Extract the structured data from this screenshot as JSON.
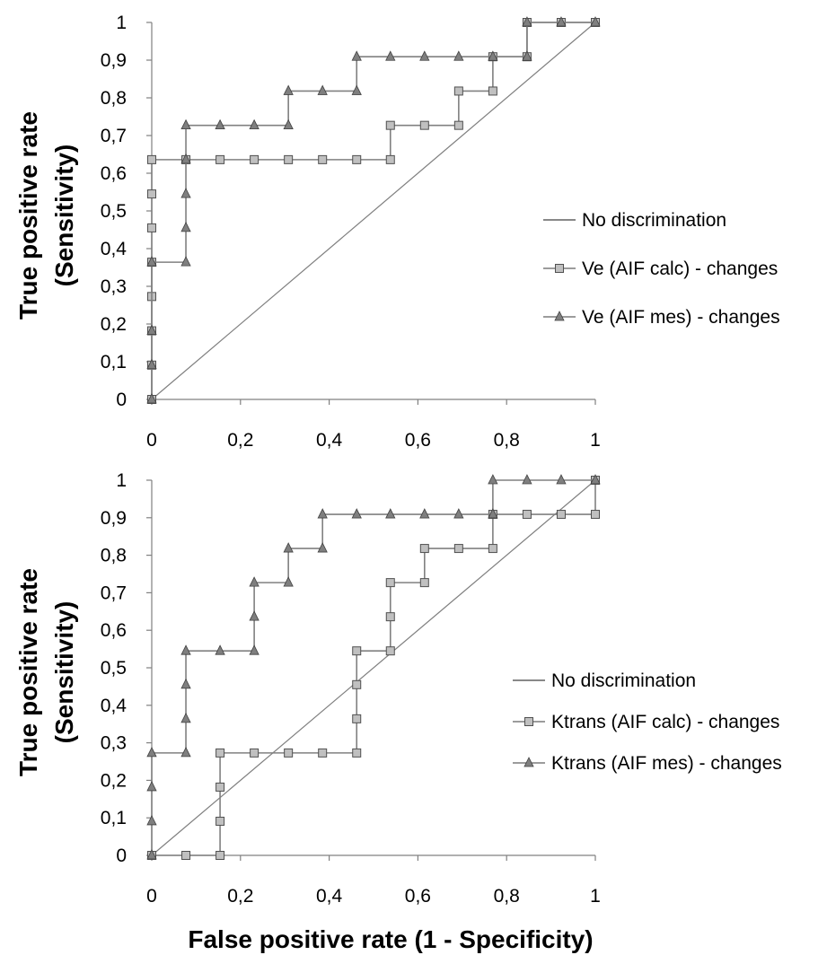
{
  "xlabel": "False positive rate (1 - Specificity)",
  "chart_data": [
    {
      "type": "line",
      "title": "",
      "xlabel": "",
      "ylabel_line1": "True positive rate",
      "ylabel_line2": "(Sensitivity)",
      "xlim": [
        0,
        1
      ],
      "ylim": [
        0,
        1
      ],
      "xticks": [
        0,
        0.2,
        0.4,
        0.6,
        0.8,
        1
      ],
      "xtick_labels": [
        "0",
        "0,2",
        "0,4",
        "0,6",
        "0,8",
        "1"
      ],
      "yticks": [
        0,
        0.1,
        0.2,
        0.3,
        0.4,
        0.5,
        0.6,
        0.7,
        0.8,
        0.9,
        1
      ],
      "ytick_labels": [
        "0",
        "0,1",
        "0,2",
        "0,3",
        "0,4",
        "0,5",
        "0,6",
        "0,7",
        "0,8",
        "0,9",
        "1"
      ],
      "grid": false,
      "legend_position": "right",
      "series": [
        {
          "name": "No discrimination",
          "marker": "none",
          "color": "#7f7f7f",
          "x": [
            0,
            1
          ],
          "y": [
            0,
            1
          ]
        },
        {
          "name": "Ve (AIF calc) - changes",
          "marker": "square",
          "color": "#808080",
          "marker_fill": "#c0c0c0",
          "x": [
            0,
            0,
            0,
            0,
            0,
            0,
            0,
            0,
            0.077,
            0.154,
            0.231,
            0.308,
            0.385,
            0.462,
            0.538,
            0.538,
            0.615,
            0.692,
            0.692,
            0.769,
            0.769,
            0.846,
            0.846,
            0.923,
            1
          ],
          "y": [
            0,
            0.091,
            0.182,
            0.273,
            0.364,
            0.455,
            0.545,
            0.636,
            0.636,
            0.636,
            0.636,
            0.636,
            0.636,
            0.636,
            0.636,
            0.727,
            0.727,
            0.727,
            0.818,
            0.818,
            0.909,
            0.909,
            1,
            1,
            1
          ]
        },
        {
          "name": "Ve (AIF mes) - changes",
          "marker": "triangle",
          "color": "#808080",
          "marker_fill": "#7f7f7f",
          "x": [
            0,
            0,
            0,
            0,
            0.077,
            0.077,
            0.077,
            0.077,
            0.077,
            0.154,
            0.231,
            0.308,
            0.308,
            0.385,
            0.462,
            0.462,
            0.538,
            0.615,
            0.692,
            0.769,
            0.846,
            0.846,
            0.923,
            1
          ],
          "y": [
            0,
            0.091,
            0.182,
            0.364,
            0.364,
            0.455,
            0.545,
            0.636,
            0.727,
            0.727,
            0.727,
            0.727,
            0.818,
            0.818,
            0.818,
            0.909,
            0.909,
            0.909,
            0.909,
            0.909,
            0.909,
            1,
            1,
            1
          ]
        }
      ]
    },
    {
      "type": "line",
      "title": "",
      "xlabel": "",
      "ylabel_line1": "True positive rate",
      "ylabel_line2": "(Sensitivity)",
      "xlim": [
        0,
        1
      ],
      "ylim": [
        0,
        1
      ],
      "xticks": [
        0,
        0.2,
        0.4,
        0.6,
        0.8,
        1
      ],
      "xtick_labels": [
        "0",
        "0,2",
        "0,4",
        "0,6",
        "0,8",
        "1"
      ],
      "yticks": [
        0,
        0.1,
        0.2,
        0.3,
        0.4,
        0.5,
        0.6,
        0.7,
        0.8,
        0.9,
        1
      ],
      "ytick_labels": [
        "0",
        "0,1",
        "0,2",
        "0,3",
        "0,4",
        "0,5",
        "0,6",
        "0,7",
        "0,8",
        "0,9",
        "1"
      ],
      "grid": false,
      "legend_position": "right",
      "series": [
        {
          "name": "No discrimination",
          "marker": "none",
          "color": "#7f7f7f",
          "x": [
            0,
            1
          ],
          "y": [
            0,
            1
          ]
        },
        {
          "name": "Ktrans (AIF calc) - changes",
          "marker": "square",
          "color": "#808080",
          "marker_fill": "#c0c0c0",
          "x": [
            0,
            0.077,
            0.154,
            0.154,
            0.154,
            0.154,
            0.231,
            0.308,
            0.385,
            0.462,
            0.462,
            0.462,
            0.462,
            0.538,
            0.538,
            0.538,
            0.615,
            0.615,
            0.692,
            0.769,
            0.769,
            0.846,
            0.923,
            1,
            1
          ],
          "y": [
            0,
            0,
            0,
            0.091,
            0.182,
            0.273,
            0.273,
            0.273,
            0.273,
            0.273,
            0.364,
            0.455,
            0.545,
            0.545,
            0.636,
            0.727,
            0.727,
            0.818,
            0.818,
            0.818,
            0.909,
            0.909,
            0.909,
            0.909,
            1
          ]
        },
        {
          "name": "Ktrans (AIF mes) - changes",
          "marker": "triangle",
          "color": "#808080",
          "marker_fill": "#7f7f7f",
          "x": [
            0,
            0,
            0,
            0,
            0.077,
            0.077,
            0.077,
            0.077,
            0.154,
            0.231,
            0.231,
            0.231,
            0.308,
            0.308,
            0.385,
            0.385,
            0.462,
            0.538,
            0.615,
            0.692,
            0.769,
            0.769,
            0.846,
            0.923,
            1
          ],
          "y": [
            0,
            0.091,
            0.182,
            0.273,
            0.273,
            0.364,
            0.455,
            0.545,
            0.545,
            0.545,
            0.636,
            0.727,
            0.727,
            0.818,
            0.818,
            0.909,
            0.909,
            0.909,
            0.909,
            0.909,
            0.909,
            1,
            1,
            1,
            1
          ]
        }
      ]
    }
  ]
}
